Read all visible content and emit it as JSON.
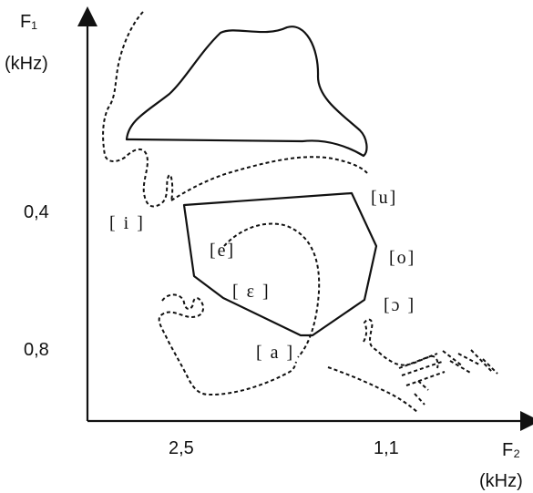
{
  "axes": {
    "y_axis_label": "F₁",
    "y_axis_unit": "(kHz)",
    "x_axis_label": "F₂",
    "x_axis_unit": "(kHz)",
    "y_ticks": [
      "0,4",
      "0,8"
    ],
    "x_ticks": [
      "2,5",
      "1,1"
    ]
  },
  "vowels": {
    "i": "[ i ]",
    "e": "[e]",
    "epsilon": "[ ɛ ]",
    "a": "[ a ]",
    "u": "[u]",
    "o": "[o]",
    "open_o": "[ɔ ]"
  }
}
